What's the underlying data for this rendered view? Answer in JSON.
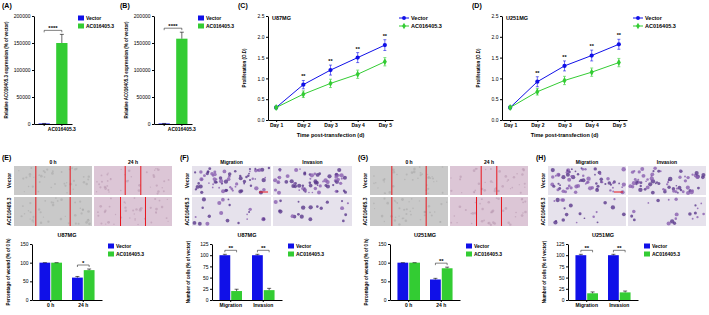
{
  "chart_data": [
    {
      "panel": "(A)",
      "type": "bar",
      "y_label": "Relative AC016405.3 expression (% of vector)",
      "categories": [
        null,
        "AC016405.3"
      ],
      "series": [
        {
          "name": "Vector",
          "color": "#1010e8",
          "values": [
            1000,
            null
          ],
          "errors": [
            30,
            null
          ]
        },
        {
          "name": "AC016405.3",
          "color": "#33cc33",
          "values": [
            null,
            150000
          ],
          "errors": [
            null,
            16000
          ]
        }
      ],
      "ylim": [
        0,
        200000
      ],
      "yticks": [
        0,
        50000,
        100000,
        150000,
        200000
      ],
      "annotations": [
        {
          "text": "****"
        }
      ],
      "legend": "right"
    },
    {
      "panel": "(B)",
      "type": "bar",
      "y_label": "Relative AC016405.3 expression (% of vector)",
      "categories": [
        null,
        "AC016405.3"
      ],
      "series": [
        {
          "name": "Vector",
          "color": "#1010e8",
          "values": [
            1000,
            null
          ],
          "errors": [
            30,
            null
          ]
        },
        {
          "name": "AC016405.3",
          "color": "#33cc33",
          "values": [
            null,
            158000
          ],
          "errors": [
            null,
            12000
          ]
        }
      ],
      "ylim": [
        0,
        200000
      ],
      "yticks": [
        0,
        50000,
        100000,
        150000,
        200000
      ],
      "annotations": [
        {
          "text": "****"
        }
      ],
      "legend": "right"
    },
    {
      "panel": "(C)",
      "type": "line",
      "title": "U87MG",
      "x_label": "Time post-transfection (d)",
      "y_label": "Proliferation (O.D)",
      "categories": [
        "Day 1",
        "Day 2",
        "Day 3",
        "Day 4",
        "Day 5"
      ],
      "series": [
        {
          "name": "Vector",
          "color": "#1010e8",
          "marker": "circle",
          "values": [
            0.3,
            0.85,
            1.2,
            1.5,
            1.8
          ],
          "errors": [
            0.03,
            0.1,
            0.12,
            0.12,
            0.13
          ]
        },
        {
          "name": "AC016405.3",
          "color": "#33cc33",
          "marker": "diamond",
          "values": [
            0.3,
            0.62,
            0.88,
            1.1,
            1.4
          ],
          "errors": [
            0.03,
            0.08,
            0.1,
            0.1,
            0.1
          ]
        }
      ],
      "ylim": [
        0,
        2.5
      ],
      "yticks": [
        {
          "value": 0,
          "label": "0.0"
        },
        0.5,
        {
          "value": 1,
          "label": "1.0"
        },
        1.5,
        {
          "value": 2,
          "label": "2.0"
        },
        2.5
      ],
      "significance": [
        null,
        "**",
        "**",
        "**",
        "**"
      ],
      "legend": "right"
    },
    {
      "panel": "(D)",
      "type": "line",
      "title": "U251MG",
      "x_label": "Time post-transfection (d)",
      "y_label": "Proliferation (O.D)",
      "categories": [
        "Day 1",
        "Day 2",
        "Day 3",
        "Day 4",
        "Day 5"
      ],
      "series": [
        {
          "name": "Vector",
          "color": "#1010e8",
          "marker": "circle",
          "values": [
            0.3,
            0.92,
            1.3,
            1.55,
            1.82
          ],
          "errors": [
            0.03,
            0.12,
            0.12,
            0.13,
            0.12
          ]
        },
        {
          "name": "AC016405.3",
          "color": "#33cc33",
          "marker": "diamond",
          "values": [
            0.3,
            0.68,
            0.95,
            1.15,
            1.38
          ],
          "errors": [
            0.03,
            0.08,
            0.1,
            0.1,
            0.1
          ]
        }
      ],
      "ylim": [
        0,
        2.5
      ],
      "yticks": [
        {
          "value": 0,
          "label": "0.0"
        },
        0.5,
        {
          "value": 1,
          "label": "1.0"
        },
        1.5,
        {
          "value": 2,
          "label": "2.0"
        },
        2.5
      ],
      "significance": [
        null,
        "**",
        "**",
        "**",
        "**"
      ],
      "legend": "right"
    },
    {
      "panel": "(E)",
      "type": "wound",
      "columns": [
        "0 h",
        "24 h"
      ],
      "rows": [
        "Vector",
        "AC016405.3"
      ]
    },
    {
      "type": "bar",
      "title": "U87MG",
      "y_label": "Percentage of wound (% of 0 h)",
      "categories": [
        "0 h",
        "24 h"
      ],
      "series": [
        {
          "name": "Vector",
          "color": "#1010e8",
          "values": [
            100,
            60
          ],
          "errors": [
            0,
            3
          ]
        },
        {
          "name": "AC016405.3",
          "color": "#33cc33",
          "values": [
            100,
            80
          ],
          "errors": [
            0,
            3
          ]
        }
      ],
      "ylim": [
        0,
        150
      ],
      "yticks": [
        0,
        50,
        100,
        150
      ],
      "significance": [
        null,
        "*"
      ],
      "legend": "right"
    },
    {
      "panel": "(F)",
      "type": "transwell",
      "columns": [
        "Migration",
        "Invasion"
      ],
      "rows": [
        "Vector",
        "AC016405.3"
      ]
    },
    {
      "type": "bar",
      "title": "U87MG",
      "y_label": "Number of cells (% of vector)",
      "categories": [
        "Migration",
        "Invasion"
      ],
      "series": [
        {
          "name": "Vector",
          "color": "#1010e8",
          "values": [
            100,
            100
          ],
          "errors": [
            2,
            2
          ]
        },
        {
          "name": "AC016405.3",
          "color": "#33cc33",
          "values": [
            20,
            22
          ],
          "errors": [
            4,
            4
          ]
        }
      ],
      "ylim": [
        0,
        125
      ],
      "yticks": [
        0,
        25,
        50,
        75,
        100,
        125
      ],
      "significance": [
        "**",
        "**"
      ],
      "legend": "right"
    },
    {
      "panel": "(G)",
      "type": "wound",
      "columns": [
        "0 h",
        "24 h"
      ],
      "rows": [
        "Vector",
        "AC016405.3"
      ]
    },
    {
      "type": "bar",
      "title": "U251MG",
      "y_label": "Percentage of wound (% of 0 h)",
      "categories": [
        "0 h",
        "24 h"
      ],
      "series": [
        {
          "name": "Vector",
          "color": "#1010e8",
          "values": [
            100,
            55
          ],
          "errors": [
            0,
            3
          ]
        },
        {
          "name": "AC016405.3",
          "color": "#33cc33",
          "values": [
            100,
            85
          ],
          "errors": [
            0,
            3
          ]
        }
      ],
      "ylim": [
        0,
        150
      ],
      "yticks": [
        0,
        50,
        100,
        150
      ],
      "significance": [
        null,
        "**"
      ],
      "legend": "right"
    },
    {
      "panel": "(H)",
      "type": "transwell",
      "columns": [
        "Migration",
        "Invasion"
      ],
      "rows": [
        "Vector",
        "AC016405.3"
      ]
    },
    {
      "type": "bar",
      "title": "U251MG",
      "y_label": "Number of cells (% of vector)",
      "categories": [
        "Migration",
        "Invasion"
      ],
      "series": [
        {
          "name": "Vector",
          "color": "#1010e8",
          "values": [
            100,
            100
          ],
          "errors": [
            2,
            2
          ]
        },
        {
          "name": "AC016405.3",
          "color": "#33cc33",
          "values": [
            15,
            17
          ],
          "errors": [
            3,
            3
          ]
        }
      ],
      "ylim": [
        0,
        125
      ],
      "yticks": [
        0,
        25,
        50,
        75,
        100,
        125
      ],
      "significance": [
        "**",
        "**"
      ],
      "legend": "right"
    }
  ]
}
